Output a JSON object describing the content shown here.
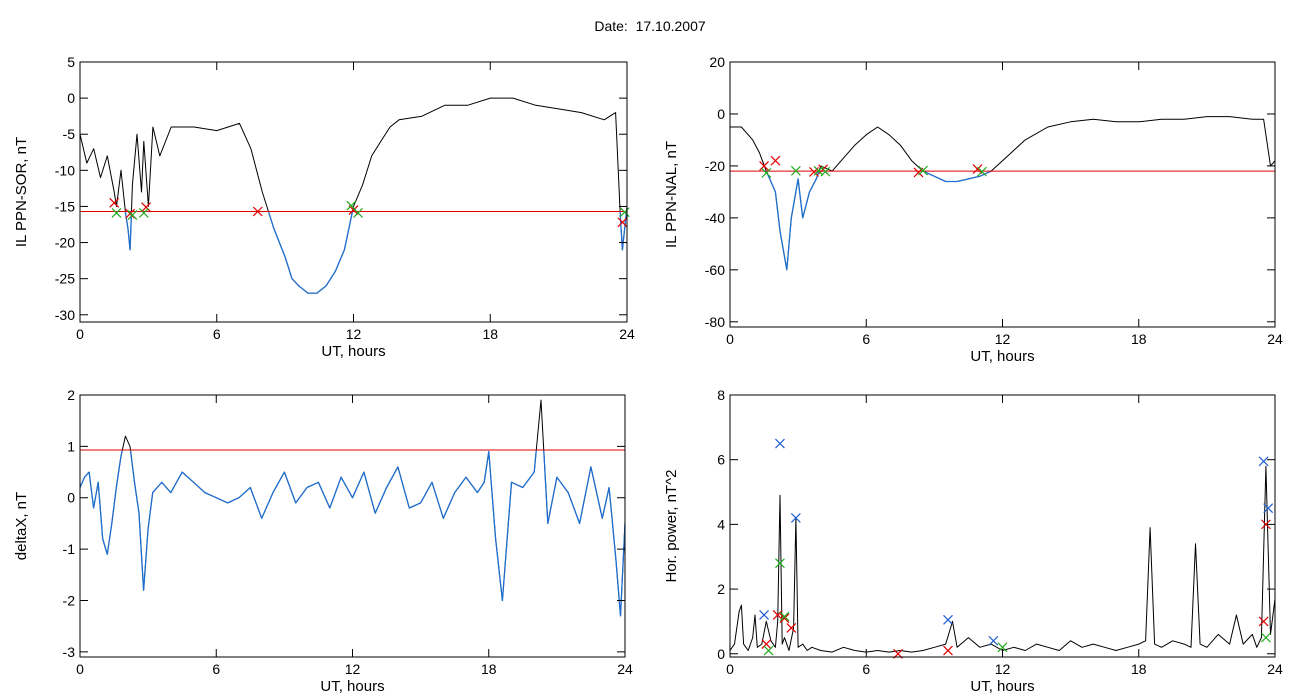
{
  "figure": {
    "title": "Date:  17.10.2007"
  },
  "colors": {
    "trace": "#000000",
    "threshold": "#e00000",
    "below": "#1f6fd0",
    "marker_red": "#e00000",
    "marker_green": "#22aa22",
    "marker_blue": "#2060d0"
  },
  "chart_data": [
    {
      "id": "sor",
      "type": "line",
      "xlabel": "UT, hours",
      "ylabel": "IL PPN-SOR, nT",
      "xlim": [
        0,
        24
      ],
      "ylim": [
        -31,
        5
      ],
      "xticks": [
        0,
        6,
        12,
        18,
        24
      ],
      "yticks": [
        5,
        0,
        -5,
        -10,
        -15,
        -20,
        -25,
        -30
      ],
      "threshold": -15.7,
      "series": [
        {
          "x": [
            0,
            0.3,
            0.6,
            0.9,
            1.2,
            1.5,
            1.6,
            1.8,
            2.0,
            2.1,
            2.2,
            2.3,
            2.5,
            2.7,
            2.8,
            3.0,
            3.2,
            3.5,
            4,
            5,
            6,
            6.5,
            7,
            7.5,
            8,
            8.5,
            9,
            9.3,
            9.6,
            10,
            10.4,
            10.8,
            11.2,
            11.6,
            12,
            12.4,
            12.8,
            13.2,
            13.6,
            14,
            15,
            16,
            17,
            18,
            19,
            20,
            21,
            22,
            23,
            23.5,
            23.7,
            23.8,
            23.9,
            24
          ],
          "y": [
            -5,
            -9,
            -7,
            -11,
            -8,
            -13,
            -15,
            -10,
            -16,
            -18,
            -21,
            -12,
            -5,
            -13,
            -6,
            -15,
            -4,
            -8,
            -4,
            -4,
            -4.5,
            -4,
            -3.5,
            -7,
            -13,
            -18,
            -22,
            -25,
            -26,
            -27,
            -27,
            -26,
            -24,
            -21,
            -15,
            -12,
            -8,
            -6,
            -4,
            -3,
            -2.5,
            -1,
            -1,
            0,
            0,
            -1,
            -1.5,
            -2,
            -3,
            -2,
            -16,
            -21,
            -18,
            -15
          ]
        }
      ],
      "markers": {
        "red": [
          [
            1.5,
            -14.5
          ],
          [
            2.2,
            -16
          ],
          [
            2.9,
            -15.1
          ],
          [
            7.8,
            -15.7
          ],
          [
            12.0,
            -15.5
          ],
          [
            23.8,
            -17.2
          ]
        ],
        "green": [
          [
            1.6,
            -15.9
          ],
          [
            2.3,
            -16.2
          ],
          [
            2.8,
            -15.9
          ],
          [
            11.9,
            -14.9
          ],
          [
            12.2,
            -15.9
          ],
          [
            23.9,
            -15.8
          ]
        ]
      }
    },
    {
      "id": "nal",
      "type": "line",
      "xlabel": "UT, hours",
      "ylabel": "IL PPN-NAL, nT",
      "xlim": [
        0,
        24
      ],
      "ylim": [
        -82,
        20
      ],
      "xticks": [
        0,
        6,
        12,
        18,
        24
      ],
      "yticks": [
        20,
        0,
        -20,
        -40,
        -60,
        -80
      ],
      "threshold": -22,
      "series": [
        {
          "x": [
            0,
            0.5,
            1,
            1.3,
            1.6,
            2,
            2.2,
            2.5,
            2.7,
            3,
            3.2,
            3.5,
            3.8,
            4,
            4.5,
            5,
            5.5,
            6,
            6.5,
            7,
            7.5,
            8,
            8.5,
            9,
            9.5,
            10,
            10.5,
            11,
            11.5,
            12,
            13,
            14,
            15,
            16,
            17,
            18,
            19,
            20,
            21,
            22,
            23,
            23.5,
            23.8,
            24
          ],
          "y": [
            -5,
            -5,
            -10,
            -15,
            -22,
            -30,
            -45,
            -60,
            -40,
            -25,
            -40,
            -30,
            -25,
            -20,
            -22,
            -17,
            -12,
            -8,
            -5,
            -8,
            -12,
            -18,
            -22,
            -24,
            -26,
            -26,
            -25,
            -24,
            -22,
            -18,
            -10,
            -5,
            -3,
            -2,
            -3,
            -3,
            -2,
            -2,
            -1,
            -1,
            -2,
            -2,
            -20,
            -18
          ]
        }
      ],
      "markers": {
        "red": [
          [
            1.5,
            -20
          ],
          [
            2.0,
            -18
          ],
          [
            3.7,
            -22.3
          ],
          [
            4.1,
            -21.3
          ],
          [
            8.3,
            -22.5
          ],
          [
            10.9,
            -21.2
          ]
        ],
        "green": [
          [
            1.6,
            -22.7
          ],
          [
            2.9,
            -21.9
          ],
          [
            3.9,
            -21.9
          ],
          [
            4.2,
            -22.2
          ],
          [
            8.5,
            -21.8
          ],
          [
            11.1,
            -22.2
          ]
        ]
      }
    },
    {
      "id": "deltax",
      "type": "line",
      "xlabel": "UT, hours",
      "ylabel": "deltaX, nT",
      "xlim": [
        0,
        24
      ],
      "ylim": [
        -3.1,
        2
      ],
      "xticks": [
        0,
        6,
        12,
        18,
        24
      ],
      "yticks": [
        2,
        1,
        0,
        -1,
        -2,
        -3
      ],
      "threshold": 0.93,
      "series": [
        {
          "x": [
            0,
            0.2,
            0.4,
            0.6,
            0.8,
            1.0,
            1.2,
            1.4,
            1.6,
            1.8,
            2.0,
            2.2,
            2.4,
            2.6,
            2.8,
            3.0,
            3.2,
            3.4,
            3.6,
            3.8,
            4.0,
            4.5,
            5,
            5.5,
            6,
            6.5,
            7,
            7.5,
            8,
            8.5,
            9,
            9.5,
            10,
            10.5,
            11,
            11.5,
            12,
            12.5,
            13,
            13.5,
            14,
            14.5,
            15,
            15.5,
            16,
            16.5,
            17,
            17.5,
            17.8,
            18,
            18.3,
            18.6,
            19,
            19.5,
            20,
            20.3,
            20.6,
            21,
            21.5,
            22,
            22.5,
            23,
            23.3,
            23.6,
            23.8,
            24
          ],
          "y": [
            0.2,
            0.4,
            0.5,
            -0.2,
            0.3,
            -0.8,
            -1.1,
            -0.5,
            0.2,
            0.8,
            1.2,
            1.0,
            0.3,
            -0.3,
            -1.8,
            -0.6,
            0.1,
            0.2,
            0.3,
            0.2,
            0.1,
            0.5,
            0.3,
            0.1,
            0.0,
            -0.1,
            0.0,
            0.2,
            -0.4,
            0.1,
            0.5,
            -0.1,
            0.2,
            0.3,
            -0.2,
            0.4,
            0.0,
            0.5,
            -0.3,
            0.2,
            0.6,
            -0.2,
            -0.1,
            0.3,
            -0.4,
            0.1,
            0.4,
            0.1,
            0.3,
            0.9,
            -0.8,
            -2.0,
            0.3,
            0.2,
            0.5,
            1.9,
            -0.5,
            0.4,
            0.1,
            -0.5,
            0.6,
            -0.4,
            0.2,
            -1.2,
            -2.3,
            -0.5
          ]
        }
      ],
      "markers": {
        "red": [],
        "green": []
      }
    },
    {
      "id": "power",
      "type": "line",
      "xlabel": "UT, hours",
      "ylabel": "Hor. power, nT^2",
      "xlim": [
        0,
        24
      ],
      "ylim": [
        -0.1,
        8
      ],
      "xticks": [
        0,
        6,
        12,
        18,
        24
      ],
      "yticks": [
        8,
        6,
        4,
        2,
        0
      ],
      "threshold": null,
      "series": [
        {
          "x": [
            0,
            0.2,
            0.4,
            0.5,
            0.6,
            0.8,
            1.0,
            1.1,
            1.2,
            1.4,
            1.6,
            1.8,
            2.0,
            2.1,
            2.2,
            2.3,
            2.4,
            2.6,
            2.8,
            2.9,
            3.0,
            3.2,
            3.4,
            3.6,
            4,
            4.5,
            5,
            5.5,
            6,
            6.5,
            7,
            7.5,
            8,
            8.5,
            9,
            9.5,
            9.8,
            10,
            10.5,
            11,
            11.5,
            12,
            12.5,
            13,
            13.5,
            14,
            14.5,
            15,
            15.5,
            16,
            16.5,
            17,
            17.5,
            18,
            18.3,
            18.5,
            18.7,
            19,
            19.5,
            20,
            20.3,
            20.5,
            20.7,
            21,
            21.5,
            22,
            22.3,
            22.6,
            23,
            23.2,
            23.4,
            23.6,
            23.8,
            24
          ],
          "y": [
            0.1,
            0.3,
            1.3,
            1.5,
            0.3,
            0.1,
            0.5,
            1.2,
            0.2,
            0.3,
            1.0,
            0.4,
            0.2,
            1.0,
            4.9,
            0.3,
            0.5,
            0.1,
            0.8,
            4.2,
            0.2,
            0.3,
            0.1,
            0.2,
            0.1,
            0.05,
            0.2,
            0.1,
            0.05,
            0.1,
            0.05,
            0.1,
            0.05,
            0.1,
            0.2,
            0.3,
            1.0,
            0.2,
            0.5,
            0.2,
            0.3,
            0.1,
            0.2,
            0.1,
            0.3,
            0.2,
            0.1,
            0.4,
            0.2,
            0.3,
            0.2,
            0.1,
            0.2,
            0.3,
            0.4,
            3.9,
            0.3,
            0.2,
            0.4,
            0.3,
            0.2,
            3.4,
            0.3,
            0.2,
            0.6,
            0.3,
            1.2,
            0.3,
            0.6,
            0.2,
            0.5,
            5.8,
            0.6,
            1.7
          ]
        }
      ],
      "markers": {
        "blue": [
          [
            1.5,
            1.2
          ],
          [
            2.2,
            6.5
          ],
          [
            2.9,
            4.2
          ],
          [
            9.6,
            1.05
          ],
          [
            11.6,
            0.4
          ],
          [
            23.5,
            5.95
          ],
          [
            23.7,
            4.5
          ]
        ],
        "red": [
          [
            1.6,
            0.3
          ],
          [
            2.1,
            1.2
          ],
          [
            2.4,
            1.1
          ],
          [
            2.7,
            0.8
          ],
          [
            7.4,
            0
          ],
          [
            9.6,
            0.1
          ],
          [
            23.5,
            1.0
          ],
          [
            23.6,
            4.0
          ]
        ],
        "green": [
          [
            1.7,
            0.1
          ],
          [
            2.2,
            2.8
          ],
          [
            2.4,
            1.15
          ],
          [
            12.0,
            0.2
          ],
          [
            23.6,
            0.5
          ]
        ]
      }
    }
  ]
}
